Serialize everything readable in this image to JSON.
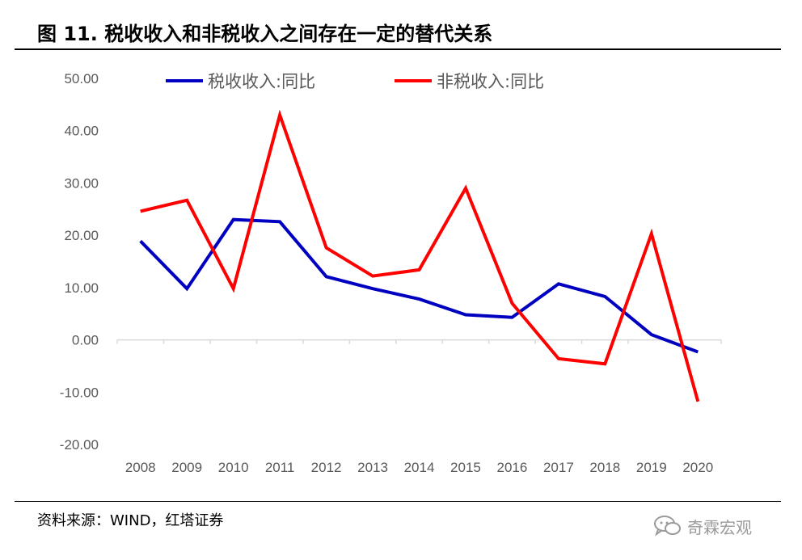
{
  "header": {
    "title": "图 11. 税收收入和非税收入之间存在一定的替代关系"
  },
  "footer": {
    "source": "资料来源：WIND，红塔证券",
    "watermark": "奇霖宏观",
    "watermark_icon": "chat-bubbles-icon"
  },
  "chart_data": {
    "type": "line",
    "x": [
      "2008",
      "2009",
      "2010",
      "2011",
      "2012",
      "2013",
      "2014",
      "2015",
      "2016",
      "2017",
      "2018",
      "2019",
      "2020"
    ],
    "y_ticks": [
      "50.00",
      "40.00",
      "30.00",
      "20.00",
      "10.00",
      "0.00",
      "-10.00",
      "-20.00"
    ],
    "ylim": [
      -20,
      50
    ],
    "grid": false,
    "legend_position": "top",
    "series": [
      {
        "name": "税收收入:同比",
        "color": "#0000C0",
        "values": [
          18.9,
          9.8,
          23.0,
          22.6,
          12.1,
          9.8,
          7.8,
          4.8,
          4.3,
          10.7,
          8.3,
          1.0,
          -2.3
        ]
      },
      {
        "name": "非税收入:同比",
        "color": "#FF0000",
        "values": [
          24.6,
          26.7,
          9.8,
          43.0,
          17.6,
          12.2,
          13.4,
          29.0,
          7.0,
          -3.6,
          -4.6,
          20.3,
          -11.8
        ]
      }
    ]
  }
}
